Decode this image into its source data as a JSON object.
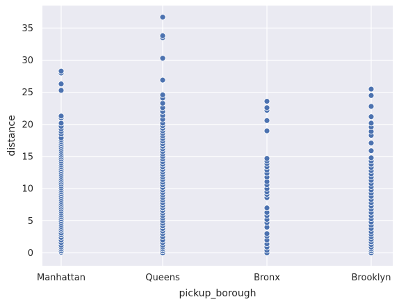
{
  "chart_data": {
    "type": "scatter",
    "xlabel": "pickup_borough",
    "ylabel": "distance",
    "categories": [
      "Manhattan",
      "Queens",
      "Bronx",
      "Brooklyn"
    ],
    "ylim": [
      -2,
      38.5
    ],
    "yticks": [
      0,
      5,
      10,
      15,
      20,
      25,
      30,
      35
    ],
    "grid": true,
    "background": "#eaeaf2",
    "point_color": "#4c72b0",
    "series": [
      {
        "category": "Manhattan",
        "values": [
          0.1,
          0.3,
          0.6,
          0.9,
          1.2,
          1.6,
          2.0,
          2.4,
          2.8,
          3.1,
          3.5,
          3.8,
          4.1,
          4.4,
          4.7,
          5.0,
          5.3,
          5.6,
          5.9,
          6.2,
          6.5,
          6.8,
          7.1,
          7.4,
          7.7,
          8.0,
          8.3,
          8.6,
          8.9,
          9.2,
          9.5,
          9.8,
          10.1,
          10.4,
          10.7,
          11.0,
          11.3,
          11.6,
          11.9,
          12.2,
          12.5,
          12.8,
          13.1,
          13.4,
          13.7,
          14.0,
          14.3,
          14.6,
          14.9,
          15.2,
          15.5,
          15.8,
          16.1,
          16.4,
          16.7,
          17.0,
          17.3,
          17.6,
          17.9,
          18.5,
          18.9,
          19.3,
          19.7,
          20.2,
          21.0,
          21.3,
          25.3,
          26.3,
          28.0,
          28.3
        ]
      },
      {
        "category": "Queens",
        "values": [
          0.0,
          0.3,
          0.6,
          0.9,
          1.2,
          1.6,
          2.0,
          2.5,
          3.0,
          3.4,
          3.8,
          4.2,
          4.6,
          5.0,
          5.4,
          5.8,
          6.2,
          6.6,
          7.0,
          7.4,
          7.8,
          8.2,
          8.6,
          9.0,
          9.4,
          9.8,
          10.2,
          10.6,
          11.0,
          11.4,
          11.8,
          12.2,
          12.6,
          13.0,
          13.4,
          13.8,
          14.2,
          14.6,
          15.0,
          15.4,
          15.8,
          16.2,
          16.6,
          17.0,
          17.4,
          17.8,
          18.2,
          18.6,
          19.0,
          19.4,
          19.8,
          20.2,
          20.8,
          21.4,
          22.0,
          22.6,
          23.3,
          24.1,
          24.6,
          26.9,
          30.3,
          33.5,
          33.8,
          36.7
        ]
      },
      {
        "category": "Bronx",
        "values": [
          0.0,
          0.4,
          0.9,
          1.4,
          2.0,
          2.6,
          3.0,
          4.0,
          4.7,
          5.2,
          5.8,
          6.3,
          7.0,
          8.6,
          9.1,
          9.5,
          10.0,
          10.6,
          11.1,
          11.8,
          12.4,
          12.9,
          13.4,
          13.9,
          14.3,
          14.7,
          19.0,
          20.6,
          22.2,
          22.6,
          23.6
        ]
      },
      {
        "category": "Brooklyn",
        "values": [
          0.0,
          0.3,
          0.6,
          0.9,
          1.3,
          1.7,
          2.1,
          2.5,
          2.9,
          3.3,
          3.8,
          4.3,
          4.8,
          5.3,
          5.8,
          6.3,
          6.8,
          7.3,
          7.8,
          8.3,
          8.8,
          9.3,
          9.8,
          10.3,
          10.8,
          11.3,
          11.8,
          12.3,
          12.8,
          13.3,
          13.8,
          14.3,
          14.8,
          15.9,
          17.1,
          18.3,
          18.9,
          19.6,
          20.2,
          21.2,
          22.8,
          24.5,
          25.5
        ]
      }
    ]
  }
}
